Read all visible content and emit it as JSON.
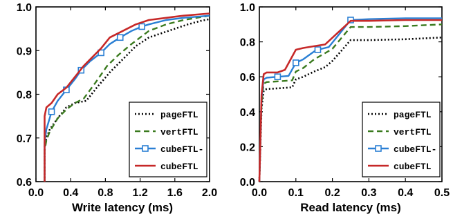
{
  "chart_data": [
    {
      "type": "line",
      "xlabel": "Write latency (ms)",
      "ylabel": "",
      "xlim": [
        0.0,
        2.0
      ],
      "ylim": [
        0.6,
        1.0
      ],
      "xticks": [
        "0.0",
        "0.4",
        "0.8",
        "1.2",
        "1.6",
        "2.0"
      ],
      "yticks": [
        "0.6",
        "0.7",
        "0.8",
        "0.9",
        "1.0"
      ],
      "legend_position": "bottom-right",
      "series": [
        {
          "name": "pageFTL",
          "style": "dotted",
          "color": "#000000",
          "x": [
            0.1,
            0.1,
            0.12,
            0.16,
            0.25,
            0.35,
            0.45,
            0.58,
            0.7,
            0.85,
            1.0,
            1.15,
            1.3,
            1.45,
            1.6,
            1.75,
            1.9,
            2.0
          ],
          "y": [
            0.6,
            0.68,
            0.7,
            0.72,
            0.745,
            0.77,
            0.78,
            0.785,
            0.815,
            0.85,
            0.88,
            0.91,
            0.93,
            0.94,
            0.95,
            0.96,
            0.968,
            0.972
          ]
        },
        {
          "name": "vertFTL",
          "style": "dashed",
          "color": "#3a7a1e",
          "x": [
            0.1,
            0.1,
            0.12,
            0.16,
            0.25,
            0.35,
            0.45,
            0.55,
            0.68,
            0.82,
            0.95,
            1.1,
            1.3,
            1.5,
            1.7,
            1.85,
            2.0
          ],
          "y": [
            0.6,
            0.67,
            0.695,
            0.715,
            0.745,
            0.765,
            0.78,
            0.79,
            0.825,
            0.865,
            0.89,
            0.915,
            0.945,
            0.96,
            0.97,
            0.975,
            0.98
          ]
        },
        {
          "name": "cubeFTL-",
          "style": "solid-marker",
          "color": "#2a7fd4",
          "x": [
            0.1,
            0.1,
            0.12,
            0.18,
            0.25,
            0.35,
            0.45,
            0.52,
            0.62,
            0.75,
            0.85,
            0.97,
            1.1,
            1.22,
            1.3,
            1.5,
            1.7,
            2.0
          ],
          "y": [
            0.6,
            0.69,
            0.72,
            0.76,
            0.785,
            0.81,
            0.835,
            0.855,
            0.875,
            0.895,
            0.915,
            0.93,
            0.945,
            0.955,
            0.96,
            0.97,
            0.975,
            0.98
          ],
          "markers_x": [
            0.18,
            0.35,
            0.52,
            0.75,
            0.97,
            1.22
          ],
          "markers_y": [
            0.76,
            0.81,
            0.855,
            0.895,
            0.93,
            0.955
          ]
        },
        {
          "name": "cubeFTL",
          "style": "solid",
          "color": "#c62828",
          "x": [
            0.1,
            0.1,
            0.12,
            0.18,
            0.25,
            0.35,
            0.45,
            0.55,
            0.65,
            0.75,
            0.85,
            1.0,
            1.15,
            1.3,
            1.5,
            1.7,
            2.0
          ],
          "y": [
            0.6,
            0.75,
            0.77,
            0.78,
            0.8,
            0.815,
            0.84,
            0.865,
            0.885,
            0.905,
            0.93,
            0.945,
            0.96,
            0.97,
            0.975,
            0.98,
            0.985
          ]
        }
      ]
    },
    {
      "type": "line",
      "xlabel": "Read latency (ms)",
      "ylabel": "",
      "xlim": [
        0.0,
        0.5
      ],
      "ylim": [
        0.0,
        1.0
      ],
      "xticks": [
        "0.0",
        "0.1",
        "0.2",
        "0.3",
        "0.4",
        "0.5"
      ],
      "yticks": [
        "0.0",
        "0.2",
        "0.4",
        "0.6",
        "0.8",
        "1.0"
      ],
      "legend_position": "bottom-right",
      "series": [
        {
          "name": "pageFTL",
          "style": "dotted",
          "color": "#000000",
          "x": [
            0.0,
            0.006,
            0.012,
            0.02,
            0.06,
            0.09,
            0.1,
            0.12,
            0.15,
            0.18,
            0.2,
            0.25,
            0.3,
            0.4,
            0.5
          ],
          "y": [
            0.0,
            0.42,
            0.52,
            0.53,
            0.535,
            0.54,
            0.585,
            0.6,
            0.63,
            0.655,
            0.69,
            0.81,
            0.81,
            0.815,
            0.825
          ]
        },
        {
          "name": "vertFTL",
          "style": "dashed",
          "color": "#3a7a1e",
          "x": [
            0.0,
            0.006,
            0.012,
            0.02,
            0.06,
            0.09,
            0.1,
            0.12,
            0.15,
            0.18,
            0.2,
            0.25,
            0.3,
            0.4,
            0.5
          ],
          "y": [
            0.0,
            0.45,
            0.56,
            0.57,
            0.575,
            0.58,
            0.63,
            0.65,
            0.7,
            0.735,
            0.76,
            0.885,
            0.885,
            0.89,
            0.9
          ]
        },
        {
          "name": "cubeFTL-",
          "style": "solid-marker",
          "color": "#2a7fd4",
          "x": [
            0.0,
            0.006,
            0.012,
            0.02,
            0.05,
            0.08,
            0.1,
            0.12,
            0.15,
            0.16,
            0.19,
            0.25,
            0.3,
            0.4,
            0.5
          ],
          "y": [
            0.0,
            0.48,
            0.585,
            0.595,
            0.6,
            0.605,
            0.68,
            0.7,
            0.745,
            0.755,
            0.77,
            0.925,
            0.93,
            0.935,
            0.935
          ],
          "markers_x": [
            0.05,
            0.1,
            0.16,
            0.25
          ],
          "markers_y": [
            0.6,
            0.68,
            0.755,
            0.925
          ]
        },
        {
          "name": "cubeFTL",
          "style": "solid",
          "color": "#c62828",
          "x": [
            0.0,
            0.006,
            0.012,
            0.02,
            0.05,
            0.07,
            0.1,
            0.12,
            0.15,
            0.18,
            0.25,
            0.3,
            0.4,
            0.5
          ],
          "y": [
            0.0,
            0.5,
            0.615,
            0.625,
            0.625,
            0.64,
            0.755,
            0.765,
            0.775,
            0.785,
            0.92,
            0.92,
            0.925,
            0.925
          ]
        }
      ]
    }
  ]
}
